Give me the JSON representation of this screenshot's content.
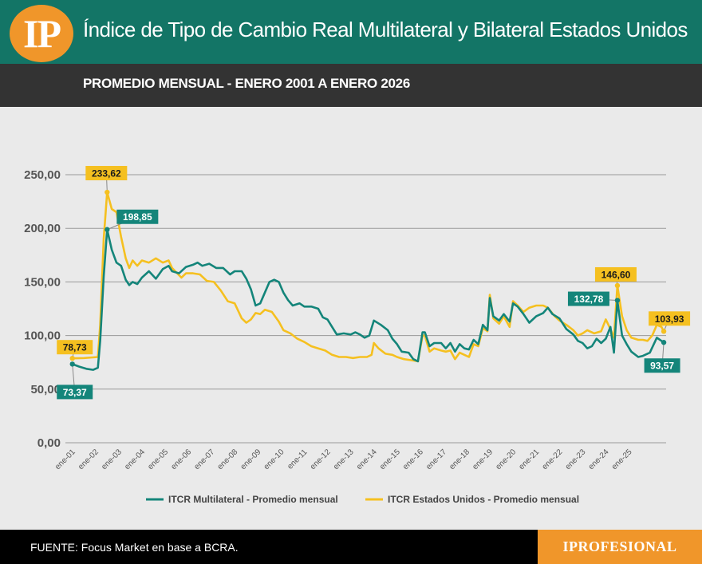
{
  "header": {
    "logo_text": "IP",
    "title": "Índice de Tipo de Cambio Real Multilateral y Bilateral Estados Unidos",
    "subtitle": "PROMEDIO MENSUAL - ENERO 2001 A ENERO 2026"
  },
  "footer": {
    "source": "FUENTE: Focus Market en base a BCRA.",
    "brand": "IPROFESIONAL"
  },
  "colors": {
    "header_bg": "#137566",
    "subheader_bg": "#333333",
    "logo_accent": "#f0962a",
    "multilateral": "#14857a",
    "estados_unidos": "#f5c020",
    "chart_bg": "#eaeaea"
  },
  "chart_data": {
    "type": "line",
    "ylim": [
      0,
      250
    ],
    "yticks": [
      "0,00",
      "50,00",
      "100,00",
      "150,00",
      "200,00",
      "250,00"
    ],
    "x_ticks": [
      "ene-01",
      "ene-02",
      "ene-03",
      "ene-04",
      "ene-05",
      "ene-06",
      "ene-07",
      "ene-08",
      "ene-09",
      "ene-10",
      "ene-11",
      "ene-12",
      "ene-13",
      "ene-14",
      "ene-15",
      "ene-16",
      "ene-17",
      "ene-18",
      "ene-19",
      "ene-20",
      "ene-21",
      "ene-22",
      "ene-23",
      "ene-24",
      "ene-25"
    ],
    "grid": true,
    "legend_position": "bottom",
    "series": [
      {
        "name": "ITCR Multilateral - Promedio mensual",
        "color": "#14857a",
        "points": [
          [
            2001.0,
            73.4
          ],
          [
            2001.3,
            71
          ],
          [
            2001.6,
            69
          ],
          [
            2001.9,
            68
          ],
          [
            2002.1,
            70
          ],
          [
            2002.2,
            95
          ],
          [
            2002.35,
            155
          ],
          [
            2002.5,
            198.85
          ],
          [
            2002.7,
            180
          ],
          [
            2002.9,
            168
          ],
          [
            2003.1,
            165
          ],
          [
            2003.3,
            152
          ],
          [
            2003.45,
            147
          ],
          [
            2003.6,
            150
          ],
          [
            2003.8,
            148
          ],
          [
            2004.0,
            154
          ],
          [
            2004.3,
            160
          ],
          [
            2004.6,
            153
          ],
          [
            2004.9,
            162
          ],
          [
            2005.15,
            165
          ],
          [
            2005.3,
            160
          ],
          [
            2005.6,
            158
          ],
          [
            2005.9,
            164
          ],
          [
            2006.2,
            166
          ],
          [
            2006.4,
            168
          ],
          [
            2006.6,
            165
          ],
          [
            2006.9,
            167
          ],
          [
            2007.2,
            163
          ],
          [
            2007.5,
            163
          ],
          [
            2007.8,
            157
          ],
          [
            2008.0,
            160
          ],
          [
            2008.3,
            160
          ],
          [
            2008.5,
            153
          ],
          [
            2008.7,
            143
          ],
          [
            2008.9,
            128
          ],
          [
            2009.1,
            130
          ],
          [
            2009.3,
            140
          ],
          [
            2009.5,
            150
          ],
          [
            2009.7,
            152
          ],
          [
            2009.9,
            150
          ],
          [
            2010.1,
            140
          ],
          [
            2010.3,
            133
          ],
          [
            2010.5,
            128
          ],
          [
            2010.8,
            130
          ],
          [
            2011.0,
            127
          ],
          [
            2011.3,
            127
          ],
          [
            2011.6,
            125
          ],
          [
            2011.8,
            117
          ],
          [
            2012.0,
            115
          ],
          [
            2012.2,
            108
          ],
          [
            2012.4,
            101
          ],
          [
            2012.7,
            102
          ],
          [
            2013.0,
            101
          ],
          [
            2013.2,
            103
          ],
          [
            2013.4,
            101
          ],
          [
            2013.6,
            98
          ],
          [
            2013.8,
            100
          ],
          [
            2014.0,
            114
          ],
          [
            2014.3,
            110
          ],
          [
            2014.6,
            105
          ],
          [
            2014.8,
            97
          ],
          [
            2015.0,
            92
          ],
          [
            2015.2,
            85
          ],
          [
            2015.5,
            84
          ],
          [
            2015.7,
            78
          ],
          [
            2015.9,
            76
          ],
          [
            2016.1,
            103
          ],
          [
            2016.2,
            103
          ],
          [
            2016.4,
            90
          ],
          [
            2016.6,
            93
          ],
          [
            2016.9,
            93
          ],
          [
            2017.1,
            88
          ],
          [
            2017.3,
            93
          ],
          [
            2017.5,
            85
          ],
          [
            2017.7,
            92
          ],
          [
            2017.9,
            88
          ],
          [
            2018.1,
            87
          ],
          [
            2018.3,
            96
          ],
          [
            2018.5,
            92
          ],
          [
            2018.7,
            110
          ],
          [
            2018.9,
            105
          ],
          [
            2019.0,
            135
          ],
          [
            2019.15,
            118
          ],
          [
            2019.4,
            114
          ],
          [
            2019.6,
            120
          ],
          [
            2019.85,
            113
          ],
          [
            2020.0,
            130
          ],
          [
            2020.2,
            127
          ],
          [
            2020.45,
            120
          ],
          [
            2020.7,
            112
          ],
          [
            2021.0,
            118
          ],
          [
            2021.3,
            121
          ],
          [
            2021.5,
            126
          ],
          [
            2021.7,
            120
          ],
          [
            2022.0,
            116
          ],
          [
            2022.3,
            106
          ],
          [
            2022.6,
            101
          ],
          [
            2022.8,
            95
          ],
          [
            2023.0,
            93
          ],
          [
            2023.2,
            88
          ],
          [
            2023.4,
            90
          ],
          [
            2023.6,
            97
          ],
          [
            2023.8,
            93
          ],
          [
            2024.0,
            97
          ],
          [
            2024.2,
            108
          ],
          [
            2024.35,
            84
          ],
          [
            2024.5,
            132.78
          ],
          [
            2024.7,
            100
          ],
          [
            2024.9,
            92
          ],
          [
            2025.1,
            85
          ],
          [
            2025.4,
            80
          ],
          [
            2025.6,
            81
          ],
          [
            2025.9,
            84
          ],
          [
            2026.2,
            98
          ],
          [
            2026.4,
            95
          ],
          [
            2026.5,
            93.57
          ]
        ]
      },
      {
        "name": "ITCR Estados Unidos - Promedio mensual",
        "color": "#f5c020",
        "points": [
          [
            2001.0,
            78.7
          ],
          [
            2001.5,
            79
          ],
          [
            2002.1,
            80
          ],
          [
            2002.2,
            110
          ],
          [
            2002.35,
            190
          ],
          [
            2002.5,
            233.62
          ],
          [
            2002.7,
            218
          ],
          [
            2002.9,
            215
          ],
          [
            2003.1,
            192
          ],
          [
            2003.3,
            172
          ],
          [
            2003.45,
            163
          ],
          [
            2003.6,
            170
          ],
          [
            2003.8,
            165
          ],
          [
            2004.0,
            170
          ],
          [
            2004.3,
            168
          ],
          [
            2004.6,
            172
          ],
          [
            2004.9,
            168
          ],
          [
            2005.15,
            170
          ],
          [
            2005.3,
            163
          ],
          [
            2005.7,
            154
          ],
          [
            2005.9,
            158
          ],
          [
            2006.2,
            158
          ],
          [
            2006.5,
            157
          ],
          [
            2006.8,
            151
          ],
          [
            2007.1,
            150
          ],
          [
            2007.4,
            142
          ],
          [
            2007.7,
            132
          ],
          [
            2008.0,
            130
          ],
          [
            2008.3,
            116
          ],
          [
            2008.5,
            112
          ],
          [
            2008.7,
            115
          ],
          [
            2008.9,
            121
          ],
          [
            2009.1,
            120
          ],
          [
            2009.3,
            124
          ],
          [
            2009.6,
            122
          ],
          [
            2009.9,
            113
          ],
          [
            2010.1,
            105
          ],
          [
            2010.4,
            102
          ],
          [
            2010.7,
            97
          ],
          [
            2011.0,
            94
          ],
          [
            2011.3,
            90
          ],
          [
            2011.6,
            88
          ],
          [
            2011.9,
            86
          ],
          [
            2012.2,
            82
          ],
          [
            2012.5,
            80
          ],
          [
            2012.8,
            80
          ],
          [
            2013.1,
            79
          ],
          [
            2013.4,
            80
          ],
          [
            2013.7,
            80
          ],
          [
            2013.9,
            82
          ],
          [
            2014.0,
            93
          ],
          [
            2014.2,
            88
          ],
          [
            2014.5,
            83
          ],
          [
            2014.8,
            82
          ],
          [
            2015.0,
            80
          ],
          [
            2015.3,
            78
          ],
          [
            2015.6,
            77
          ],
          [
            2015.9,
            76
          ],
          [
            2016.1,
            100
          ],
          [
            2016.2,
            100
          ],
          [
            2016.4,
            85
          ],
          [
            2016.6,
            88
          ],
          [
            2016.9,
            86
          ],
          [
            2017.1,
            85
          ],
          [
            2017.3,
            86
          ],
          [
            2017.5,
            78
          ],
          [
            2017.7,
            84
          ],
          [
            2017.9,
            82
          ],
          [
            2018.1,
            80
          ],
          [
            2018.3,
            92
          ],
          [
            2018.5,
            90
          ],
          [
            2018.7,
            107
          ],
          [
            2018.9,
            104
          ],
          [
            2019.0,
            138
          ],
          [
            2019.15,
            116
          ],
          [
            2019.4,
            111
          ],
          [
            2019.6,
            118
          ],
          [
            2019.85,
            108
          ],
          [
            2020.0,
            132
          ],
          [
            2020.2,
            128
          ],
          [
            2020.45,
            122
          ],
          [
            2020.7,
            126
          ],
          [
            2021.0,
            128
          ],
          [
            2021.3,
            128
          ],
          [
            2021.5,
            126
          ],
          [
            2021.8,
            118
          ],
          [
            2022.0,
            114
          ],
          [
            2022.3,
            110
          ],
          [
            2022.6,
            105
          ],
          [
            2022.8,
            100
          ],
          [
            2023.0,
            102
          ],
          [
            2023.2,
            105
          ],
          [
            2023.5,
            102
          ],
          [
            2023.8,
            104
          ],
          [
            2024.0,
            115
          ],
          [
            2024.2,
            106
          ],
          [
            2024.35,
            98
          ],
          [
            2024.5,
            146.6
          ],
          [
            2024.7,
            118
          ],
          [
            2024.9,
            105
          ],
          [
            2025.1,
            98
          ],
          [
            2025.4,
            96
          ],
          [
            2025.6,
            96
          ],
          [
            2025.8,
            95
          ],
          [
            2026.0,
            100
          ],
          [
            2026.2,
            110
          ],
          [
            2026.4,
            108
          ],
          [
            2026.5,
            103.93
          ]
        ]
      }
    ],
    "annotations": [
      {
        "text": "233,62",
        "x": 2002.5,
        "y": 233.62,
        "series": 1
      },
      {
        "text": "198,85",
        "x": 2002.5,
        "y": 198.85,
        "series": 0
      },
      {
        "text": "78,73",
        "x": 2001.0,
        "y": 78.73,
        "series": 1
      },
      {
        "text": "73,37",
        "x": 2001.0,
        "y": 73.37,
        "series": 0
      },
      {
        "text": "146,60",
        "x": 2024.5,
        "y": 146.6,
        "series": 1
      },
      {
        "text": "132,78",
        "x": 2024.5,
        "y": 132.78,
        "series": 0
      },
      {
        "text": "103,93",
        "x": 2026.5,
        "y": 103.93,
        "series": 1
      },
      {
        "text": "93,57",
        "x": 2026.5,
        "y": 93.57,
        "series": 0
      }
    ]
  }
}
